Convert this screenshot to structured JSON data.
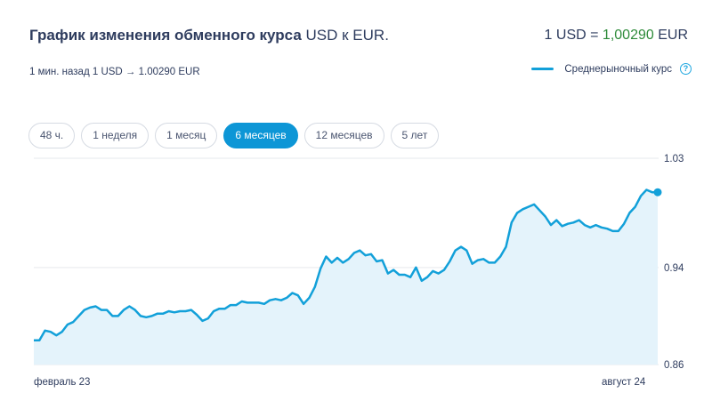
{
  "header": {
    "title_main": "График изменения обменного курса",
    "title_currency": "USD к EUR.",
    "rate_prefix": "1 USD =",
    "rate_value": "1,00290",
    "rate_suffix": "EUR"
  },
  "subheader": {
    "updated": "1 мин. назад 1 USD → 1.00290 EUR"
  },
  "legend": {
    "label": "Среднерыночный курс",
    "help": "?"
  },
  "tabs": [
    {
      "label": "48 ч.",
      "active": false
    },
    {
      "label": "1 неделя",
      "active": false
    },
    {
      "label": "1 месяц",
      "active": false
    },
    {
      "label": "6 месяцев",
      "active": true
    },
    {
      "label": "12 месяцев",
      "active": false
    },
    {
      "label": "5 лет",
      "active": false
    }
  ],
  "colors": {
    "line": "#12a0d9",
    "area": "#e4f3fb",
    "active_tab": "#0d96d6",
    "rate_value": "#2e8b3a"
  },
  "chart_data": {
    "type": "area",
    "ylim": [
      0.86,
      1.03
    ],
    "y_ticks": [
      "1.03",
      "0.94",
      "0.86"
    ],
    "x_ticks": [
      "февраль 23",
      "август 24"
    ],
    "grid": true,
    "series": [
      {
        "values": [
          0.88,
          0.88,
          0.888,
          0.887,
          0.884,
          0.887,
          0.893,
          0.895,
          0.9,
          0.905,
          0.907,
          0.908,
          0.905,
          0.905,
          0.9,
          0.9,
          0.905,
          0.908,
          0.905,
          0.9,
          0.899,
          0.9,
          0.902,
          0.902,
          0.904,
          0.903,
          0.904,
          0.904,
          0.905,
          0.901,
          0.896,
          0.898,
          0.904,
          0.906,
          0.906,
          0.909,
          0.909,
          0.912,
          0.911,
          0.911,
          0.911,
          0.91,
          0.913,
          0.914,
          0.913,
          0.915,
          0.919,
          0.917,
          0.91,
          0.915,
          0.924,
          0.939,
          0.949,
          0.944,
          0.948,
          0.944,
          0.947,
          0.952,
          0.954,
          0.95,
          0.951,
          0.945,
          0.946,
          0.935,
          0.938,
          0.934,
          0.934,
          0.932,
          0.94,
          0.929,
          0.932,
          0.937,
          0.935,
          0.938,
          0.945,
          0.954,
          0.957,
          0.954,
          0.943,
          0.946,
          0.947,
          0.944,
          0.944,
          0.949,
          0.957,
          0.977,
          0.985,
          0.988,
          0.99,
          0.992,
          0.987,
          0.982,
          0.975,
          0.979,
          0.974,
          0.976,
          0.977,
          0.979,
          0.975,
          0.973,
          0.975,
          0.973,
          0.972,
          0.97,
          0.97,
          0.976,
          0.985,
          0.99,
          0.999,
          1.004,
          1.002,
          1.002
        ]
      }
    ]
  }
}
